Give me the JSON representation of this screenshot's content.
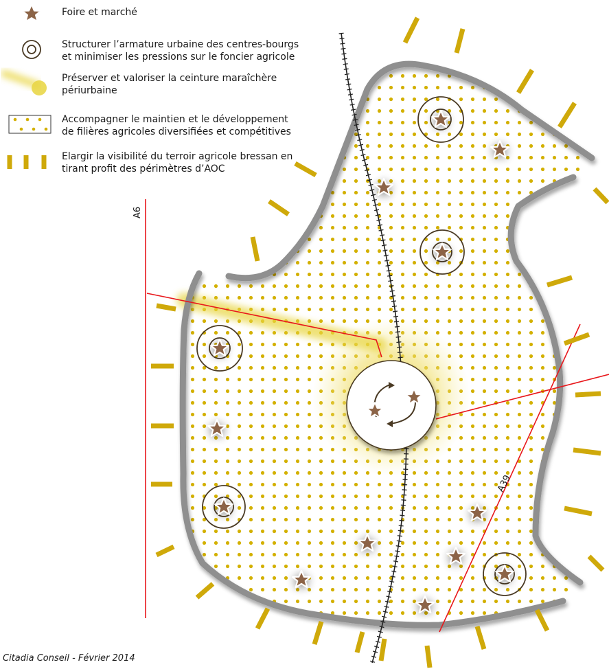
{
  "legend": {
    "items": [
      {
        "label_lines": [
          "Foire et marché"
        ]
      },
      {
        "label_lines": [
          "Structurer l’armature urbaine des centres-bourgs",
          "et minimiser les pressions sur le foncier agricole"
        ]
      },
      {
        "label_lines": [
          "Préserver et valoriser la ceinture maraîchère",
          "périurbaine"
        ]
      },
      {
        "label_lines": [
          "Accompagner le maintien et le développement",
          "de filières agricoles diversifiées et compétitives"
        ]
      },
      {
        "label_lines": [
          "Elargir la visibilité du terroir agricole bressan en",
          "tirant profit des périmètres d’AOC"
        ]
      }
    ]
  },
  "roads": {
    "a6": "A6",
    "a39": "A39"
  },
  "credit": "Citadia Conseil - Février 2014",
  "colors": {
    "star": "#8c6447",
    "ring": "#4a3a24",
    "boundary": "#8f8f8f",
    "dots": "#d3b000",
    "aoc_dash": "#cfa90a",
    "belt": "#e8d540",
    "road": "#e8181c",
    "rail": "#222222"
  },
  "icons": [
    "star-icon",
    "concentric-ring-icon",
    "belt-stroke-icon",
    "dot-pattern-icon",
    "dash-marks-icon"
  ]
}
